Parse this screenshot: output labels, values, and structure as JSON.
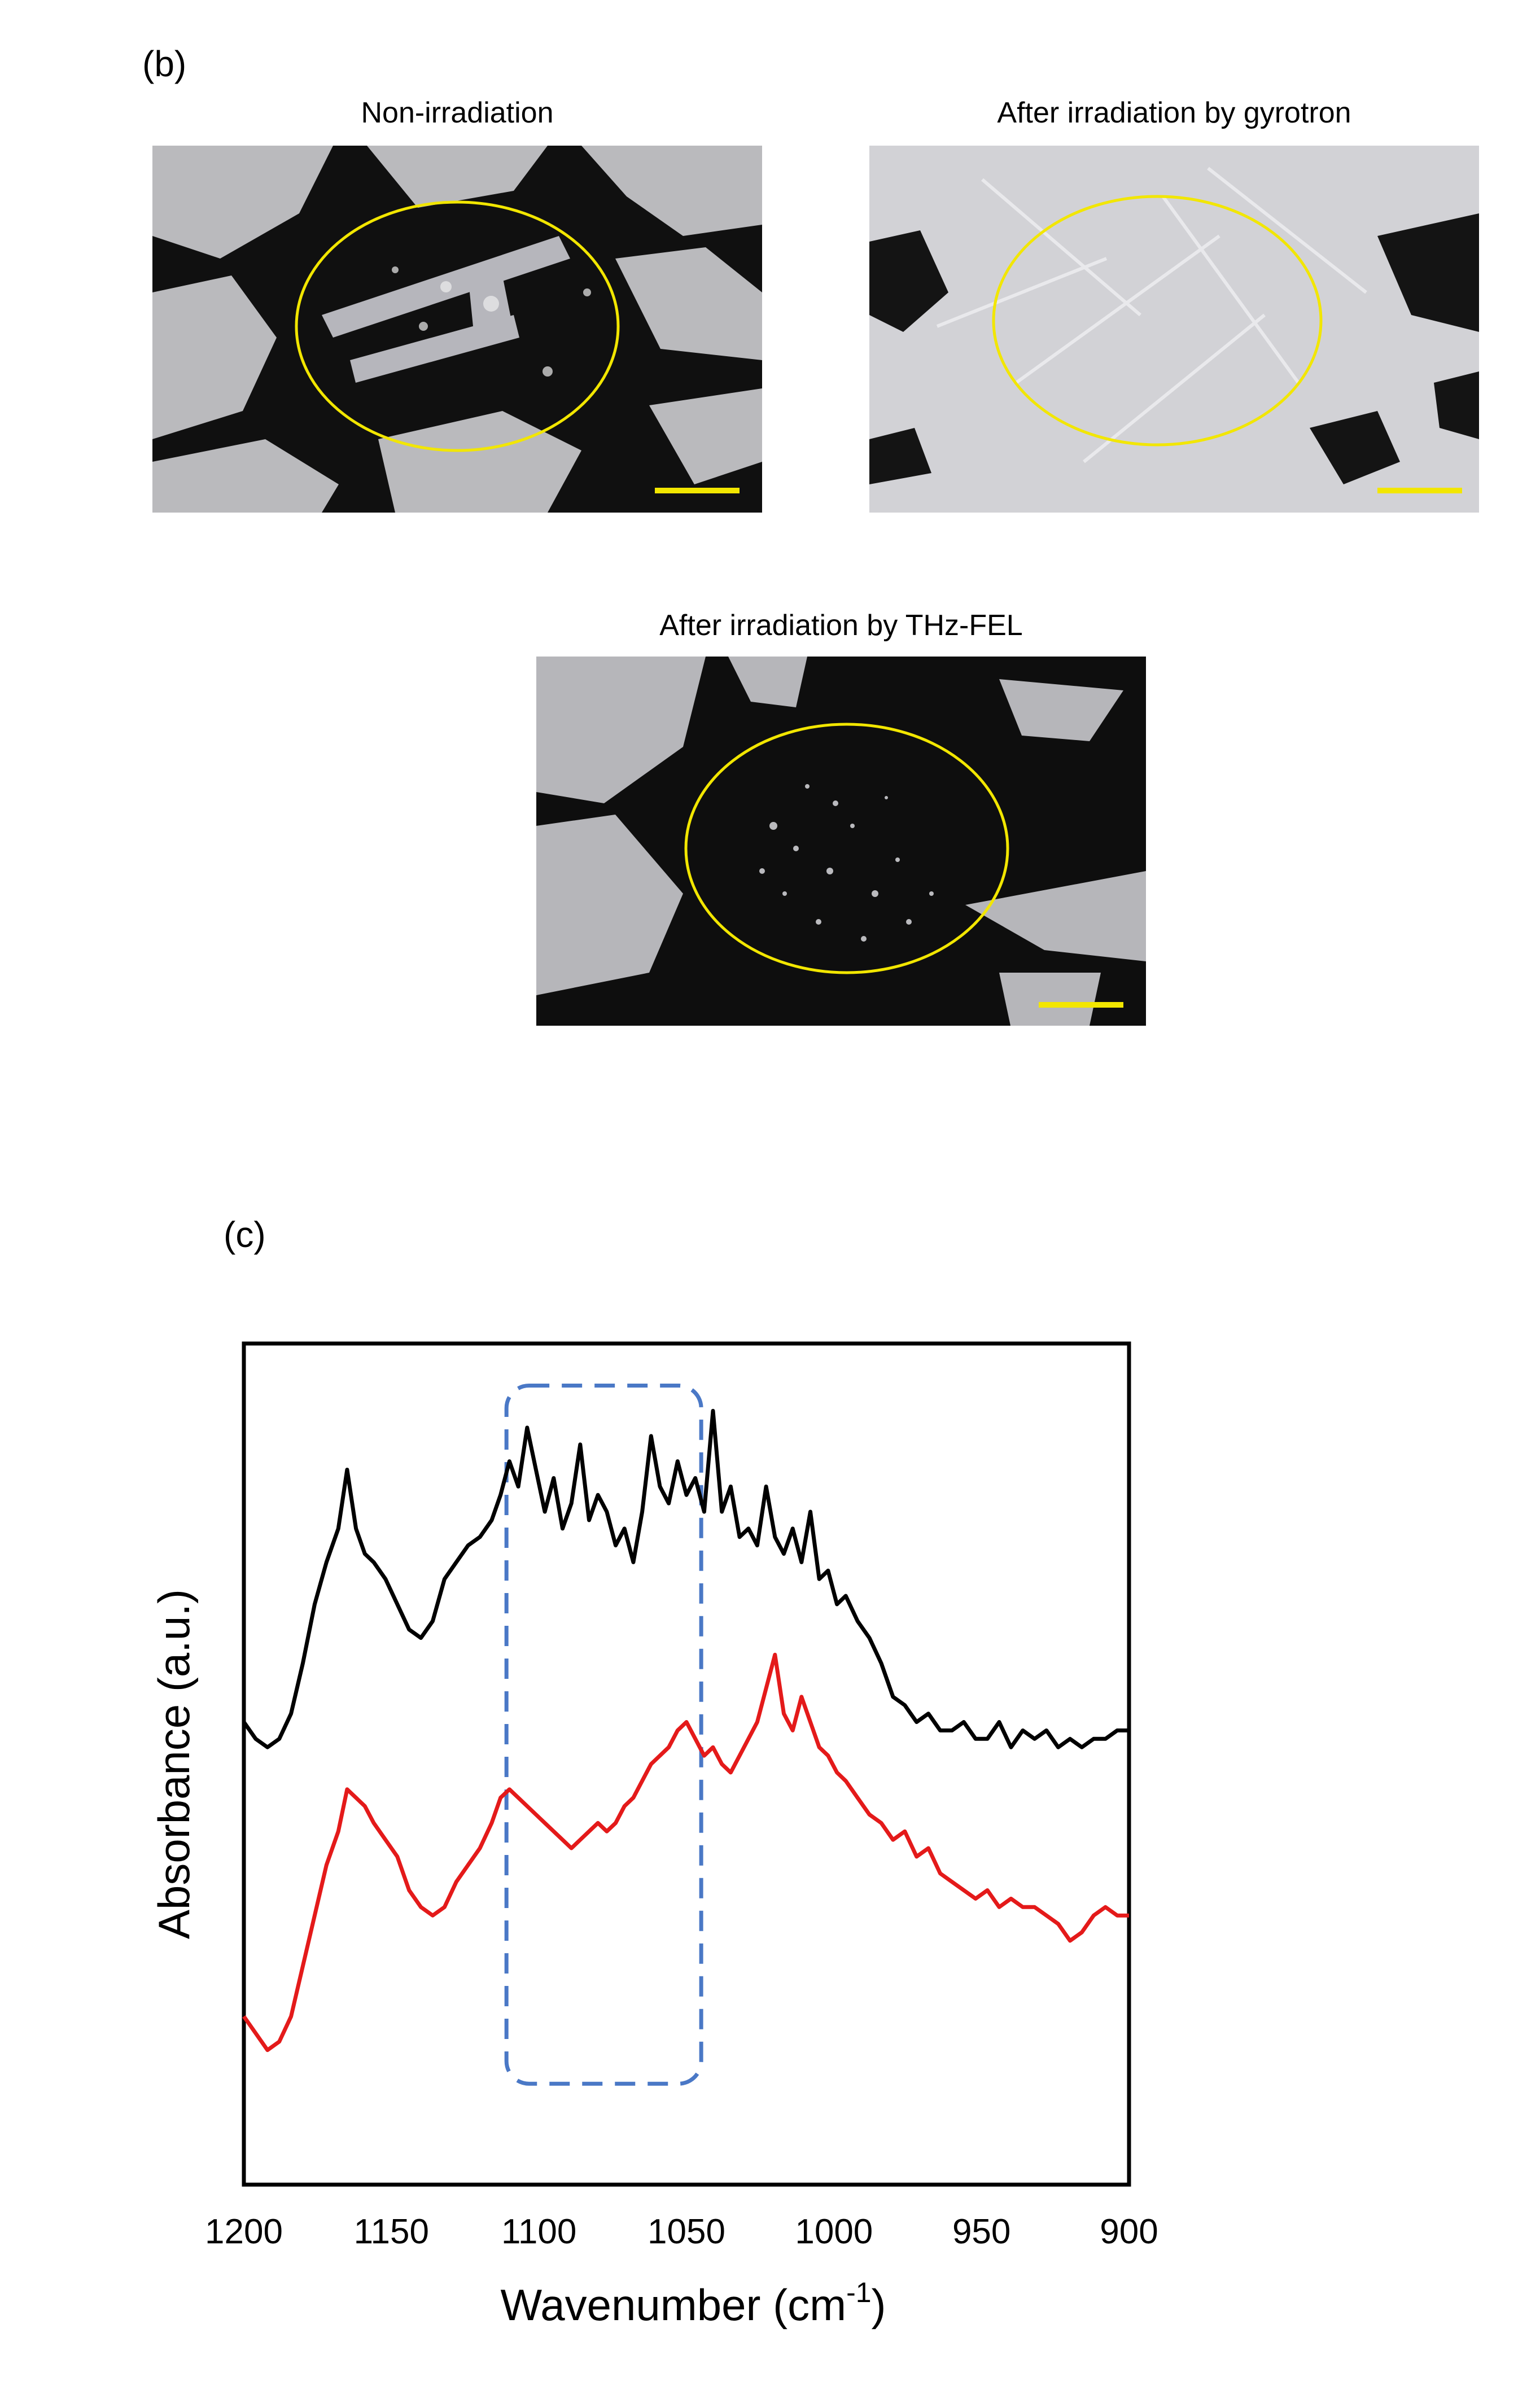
{
  "figure": {
    "panel_b_label": "(b)",
    "panel_c_label": "(c)",
    "images": [
      {
        "title": "Non-irradiation",
        "has_ellipse": true,
        "scale_bar_color": "#f2e600"
      },
      {
        "title": "After irradiation by gyrotron",
        "has_ellipse": true,
        "scale_bar_color": "#f2e600"
      },
      {
        "title": "After irradiation by THz-FEL",
        "has_ellipse": true,
        "scale_bar_color": "#f2e600"
      }
    ],
    "highlight_color": "#f2e600"
  },
  "chart_data": {
    "type": "line",
    "xlabel": "Wavenumber (cm",
    "xlabel_sup": "-1",
    "xlabel_end": ")",
    "ylabel": "Absorbance (a.u.)",
    "xlim": [
      1200,
      900
    ],
    "x_reversed": true,
    "ylim": [
      0,
      1
    ],
    "x_ticks": [
      "1200",
      "1150",
      "1100",
      "1050",
      "1000",
      "950",
      "900"
    ],
    "grid": false,
    "highlight_box": {
      "x_from": 1111,
      "x_to": 1045,
      "style": "dashed",
      "color": "#4a78c6"
    },
    "series": [
      {
        "color": "#000000",
        "x": [
          1200,
          1196,
          1192,
          1188,
          1184,
          1180,
          1176,
          1172,
          1168,
          1165,
          1162,
          1159,
          1156,
          1152,
          1148,
          1144,
          1140,
          1136,
          1132,
          1128,
          1124,
          1120,
          1116,
          1113,
          1110,
          1107,
          1104,
          1101,
          1098,
          1095,
          1092,
          1089,
          1086,
          1083,
          1080,
          1077,
          1074,
          1071,
          1068,
          1065,
          1062,
          1059,
          1056,
          1053,
          1050,
          1047,
          1044,
          1041,
          1038,
          1035,
          1032,
          1029,
          1026,
          1023,
          1020,
          1017,
          1014,
          1011,
          1008,
          1005,
          1002,
          999,
          996,
          992,
          988,
          984,
          980,
          976,
          972,
          968,
          964,
          960,
          956,
          952,
          948,
          944,
          940,
          936,
          932,
          928,
          924,
          920,
          916,
          912,
          908,
          904,
          900
        ],
        "y": [
          0.55,
          0.53,
          0.52,
          0.53,
          0.56,
          0.62,
          0.69,
          0.74,
          0.78,
          0.85,
          0.78,
          0.75,
          0.74,
          0.72,
          0.69,
          0.66,
          0.65,
          0.67,
          0.72,
          0.74,
          0.76,
          0.77,
          0.79,
          0.82,
          0.86,
          0.83,
          0.9,
          0.85,
          0.8,
          0.84,
          0.78,
          0.81,
          0.88,
          0.79,
          0.82,
          0.8,
          0.76,
          0.78,
          0.74,
          0.8,
          0.89,
          0.83,
          0.81,
          0.86,
          0.82,
          0.84,
          0.8,
          0.92,
          0.8,
          0.83,
          0.77,
          0.78,
          0.76,
          0.83,
          0.77,
          0.75,
          0.78,
          0.74,
          0.8,
          0.72,
          0.73,
          0.69,
          0.7,
          0.67,
          0.65,
          0.62,
          0.58,
          0.57,
          0.55,
          0.56,
          0.54,
          0.54,
          0.55,
          0.53,
          0.53,
          0.55,
          0.52,
          0.54,
          0.53,
          0.54,
          0.52,
          0.53,
          0.52,
          0.53,
          0.53,
          0.54,
          0.54
        ]
      },
      {
        "color": "#e41a1a",
        "x": [
          1200,
          1196,
          1192,
          1188,
          1184,
          1180,
          1176,
          1172,
          1168,
          1165,
          1162,
          1159,
          1156,
          1152,
          1148,
          1144,
          1140,
          1136,
          1132,
          1128,
          1124,
          1120,
          1116,
          1113,
          1110,
          1107,
          1104,
          1101,
          1098,
          1095,
          1092,
          1089,
          1086,
          1083,
          1080,
          1077,
          1074,
          1071,
          1068,
          1065,
          1062,
          1059,
          1056,
          1053,
          1050,
          1047,
          1044,
          1041,
          1038,
          1035,
          1032,
          1029,
          1026,
          1023,
          1020,
          1017,
          1014,
          1011,
          1008,
          1005,
          1002,
          999,
          996,
          992,
          988,
          984,
          980,
          976,
          972,
          968,
          964,
          960,
          956,
          952,
          948,
          944,
          940,
          936,
          932,
          928,
          924,
          920,
          916,
          912,
          908,
          904,
          900
        ],
        "y": [
          0.2,
          0.18,
          0.16,
          0.17,
          0.2,
          0.26,
          0.32,
          0.38,
          0.42,
          0.47,
          0.46,
          0.45,
          0.43,
          0.41,
          0.39,
          0.35,
          0.33,
          0.32,
          0.33,
          0.36,
          0.38,
          0.4,
          0.43,
          0.46,
          0.47,
          0.46,
          0.45,
          0.44,
          0.43,
          0.42,
          0.41,
          0.4,
          0.41,
          0.42,
          0.43,
          0.42,
          0.43,
          0.45,
          0.46,
          0.48,
          0.5,
          0.51,
          0.52,
          0.54,
          0.55,
          0.53,
          0.51,
          0.52,
          0.5,
          0.49,
          0.51,
          0.53,
          0.55,
          0.59,
          0.63,
          0.56,
          0.54,
          0.58,
          0.55,
          0.52,
          0.51,
          0.49,
          0.48,
          0.46,
          0.44,
          0.43,
          0.41,
          0.42,
          0.39,
          0.4,
          0.37,
          0.36,
          0.35,
          0.34,
          0.35,
          0.33,
          0.34,
          0.33,
          0.33,
          0.32,
          0.31,
          0.29,
          0.3,
          0.32,
          0.33,
          0.32,
          0.32
        ]
      }
    ]
  }
}
